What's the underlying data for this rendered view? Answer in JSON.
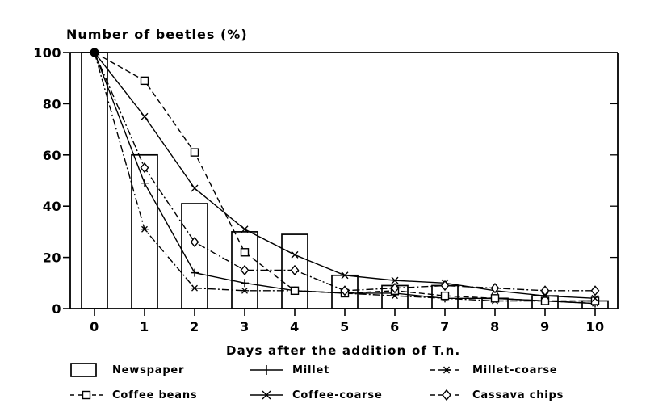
{
  "chart_data": {
    "type": "line",
    "title": "Number of beetles (%)",
    "xlabel": "Days after the addition of T.n.",
    "ylabel": "Number of beetles (%)",
    "x": [
      0,
      1,
      2,
      3,
      4,
      5,
      6,
      7,
      8,
      9,
      10
    ],
    "xlim": [
      0,
      10
    ],
    "ylim": [
      0,
      100
    ],
    "yticks": [
      0,
      20,
      40,
      60,
      80,
      100
    ],
    "right_axis_ticks": [
      20,
      40,
      60,
      80
    ],
    "grid": false,
    "legend_position": "bottom",
    "series": [
      {
        "name": "Newspaper",
        "type": "bar",
        "marker": "none",
        "dash": "none",
        "values": [
          100,
          60,
          41,
          30,
          29,
          13,
          9,
          9,
          4,
          5,
          3
        ]
      },
      {
        "name": "Millet",
        "type": "line",
        "marker": "plus",
        "dash": "solid",
        "values": [
          100,
          49,
          14,
          10,
          7,
          6,
          6,
          4,
          4,
          3,
          2
        ]
      },
      {
        "name": "Millet-coarse",
        "type": "line",
        "marker": "asterisk",
        "dash": "dashdot",
        "values": [
          100,
          31,
          8,
          7,
          7,
          6,
          5,
          4,
          3,
          3,
          2
        ]
      },
      {
        "name": "Coffee beans",
        "type": "line",
        "marker": "square",
        "dash": "dashed",
        "values": [
          100,
          89,
          61,
          22,
          7,
          6,
          7,
          5,
          4,
          3,
          3
        ]
      },
      {
        "name": "Coffee-coarse",
        "type": "line",
        "marker": "cross",
        "dash": "solid",
        "values": [
          100,
          75,
          47,
          31,
          21,
          13,
          11,
          10,
          7,
          5,
          4
        ]
      },
      {
        "name": "Cassava chips",
        "type": "line",
        "marker": "diamond",
        "dash": "dashdot",
        "values": [
          100,
          55,
          26,
          15,
          15,
          7,
          8,
          9,
          8,
          7,
          7
        ]
      }
    ],
    "origin_point": {
      "x": 0,
      "y": 100,
      "marker": "filled-circle"
    }
  },
  "colors": {
    "ink": "#000000",
    "background": "#ffffff"
  }
}
